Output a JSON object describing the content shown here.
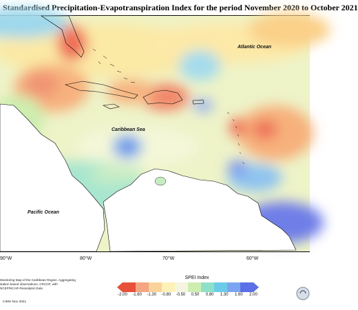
{
  "title": "Standardised Precipitation-Evapotranspiration Index for the period November 2020 to October 2021",
  "map": {
    "labels": {
      "atlantic": "Atlantic Ocean",
      "caribbean": "Caribbean Sea",
      "pacific": "Pacific Ocean"
    },
    "longitude_ticks": [
      "90°W",
      "80°W",
      "70°W",
      "60°W"
    ]
  },
  "legend": {
    "title": "SPEI Index",
    "ticks": [
      "-2.00",
      "-1.60",
      "-1.30",
      "-0.80",
      "-0.50",
      "0.50",
      "0.80",
      "1.30",
      "1.60",
      "2.00"
    ],
    "colors": [
      "#e8503a",
      "#f4a582",
      "#f9d39a",
      "#fdf1b8",
      "#f5f5e0",
      "#cdeeb0",
      "#8fe0c8",
      "#6ccbe8",
      "#7da4f0",
      "#5b6fe8"
    ]
  },
  "notes": {
    "description": "Monitoring Map of the Caribbean Region. Aggregating station based observations, CRCOF, with NCEP/NCAR Reanalysis Data",
    "credit": "CIMH Nov 2021"
  }
}
